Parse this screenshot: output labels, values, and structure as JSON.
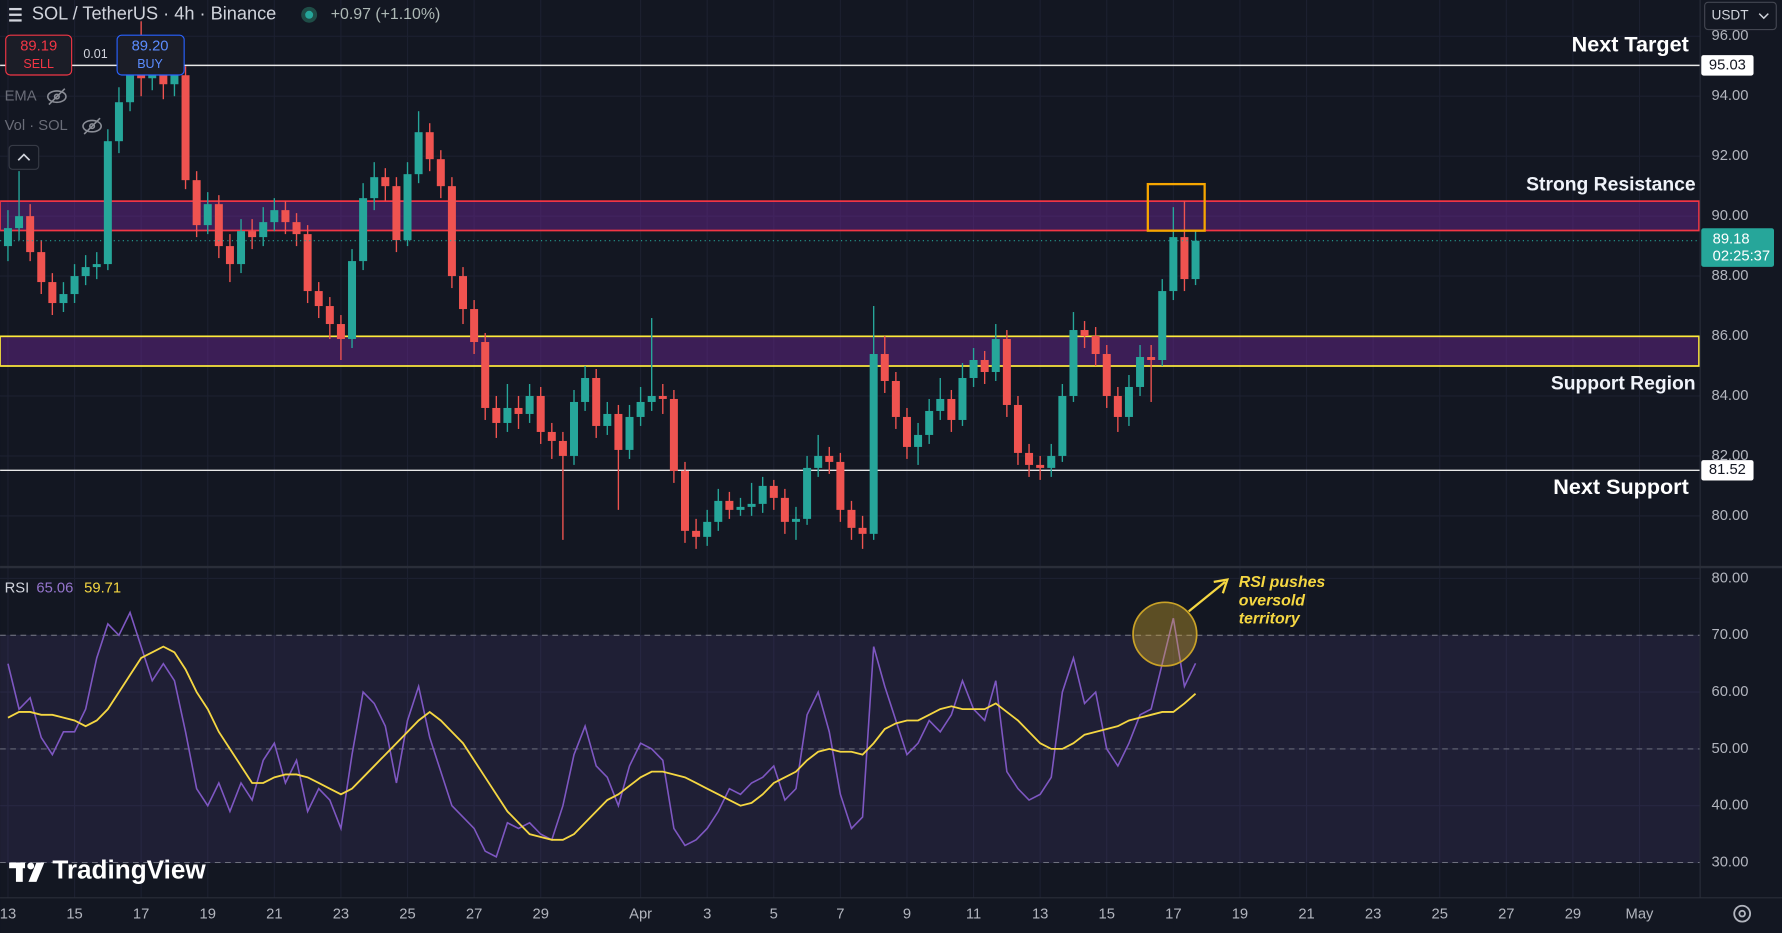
{
  "toolbar": {
    "symbol": "SOL / TetherUS · 4h · Binance",
    "change": "+0.97 (+1.10%)",
    "sell_price": "89.19",
    "sell": "SELL",
    "spread": "0.01",
    "buy_price": "89.20",
    "buy": "BUY",
    "indicators": [
      "EMA",
      "Vol · SOL"
    ],
    "currency": "USDT",
    "brand": "TradingView"
  },
  "chart_data": [
    {
      "type": "candlestick",
      "up_color": "#26a69a",
      "down_color": "#ef5350",
      "grid": true,
      "x": [
        0,
        8,
        16,
        24,
        32,
        40,
        48,
        56,
        64,
        72,
        80,
        88,
        96,
        104,
        112,
        120,
        128,
        136,
        144,
        152,
        160,
        168,
        176,
        184,
        192,
        200,
        208,
        216,
        224,
        232,
        240,
        248,
        256,
        264,
        272,
        280,
        288,
        296,
        304,
        312,
        320,
        328,
        336,
        344,
        352,
        360,
        368,
        376,
        384,
        392,
        400,
        408,
        416,
        424,
        432,
        440,
        448,
        456,
        464,
        472,
        480,
        488,
        496,
        504,
        512,
        520,
        528,
        536,
        544,
        552,
        560,
        568,
        576,
        584,
        592,
        600,
        608,
        616,
        624,
        632,
        640,
        648,
        656,
        664,
        672,
        680,
        688,
        696,
        704,
        712,
        720,
        728,
        736,
        744,
        752,
        760,
        768,
        776,
        784,
        792,
        800,
        808,
        816,
        824,
        832,
        840,
        848,
        856
      ],
      "open": [
        89.0,
        89.6,
        90.0,
        88.8,
        87.8,
        87.1,
        87.4,
        88.0,
        88.3,
        88.4,
        92.5,
        93.8,
        94.8,
        94.6,
        95.0,
        94.4,
        94.7,
        91.2,
        89.7,
        90.4,
        89.0,
        88.4,
        89.5,
        89.3,
        89.8,
        90.2,
        89.8,
        89.4,
        87.5,
        87.0,
        86.4,
        85.9,
        88.5,
        90.6,
        91.3,
        91.0,
        89.2,
        91.4,
        92.8,
        91.9,
        91.0,
        88.0,
        86.9,
        85.8,
        83.6,
        83.1,
        83.6,
        83.4,
        84.0,
        82.8,
        82.5,
        82.0,
        83.8,
        84.6,
        83.0,
        83.4,
        82.2,
        83.3,
        83.8,
        84.0,
        83.9,
        81.5,
        79.5,
        79.3,
        79.8,
        80.5,
        80.2,
        80.3,
        80.4,
        81.0,
        80.6,
        79.8,
        79.9,
        81.6,
        82.0,
        81.8,
        80.2,
        79.6,
        79.4,
        85.4,
        84.5,
        83.3,
        82.3,
        82.7,
        83.5,
        83.9,
        83.2,
        84.6,
        85.2,
        84.8,
        85.9,
        83.7,
        82.1,
        81.7,
        81.6,
        82.0,
        84.0,
        86.2,
        86.0,
        85.4,
        84.0,
        83.3,
        84.3,
        85.3,
        85.2,
        87.5,
        89.3,
        87.9
      ],
      "high": [
        90.2,
        91.5,
        90.4,
        89.2,
        88.1,
        87.8,
        88.4,
        88.7,
        88.8,
        92.9,
        94.3,
        95.3,
        96.5,
        95.6,
        95.4,
        95.1,
        95.0,
        91.5,
        90.8,
        90.7,
        89.4,
        89.9,
        89.9,
        90.3,
        90.6,
        90.5,
        90.1,
        89.7,
        87.8,
        87.3,
        86.7,
        88.9,
        91.1,
        91.8,
        91.6,
        91.3,
        91.8,
        93.5,
        93.1,
        92.2,
        91.3,
        88.3,
        87.2,
        86.1,
        84.0,
        84.4,
        84.0,
        84.4,
        84.3,
        83.1,
        82.8,
        84.2,
        85.0,
        84.9,
        83.8,
        83.7,
        83.7,
        84.3,
        86.6,
        84.4,
        84.2,
        81.8,
        79.9,
        80.2,
        80.9,
        80.8,
        80.6,
        81.1,
        81.3,
        81.2,
        80.9,
        80.3,
        82.0,
        82.7,
        82.3,
        82.1,
        80.5,
        80.0,
        87.0,
        86.0,
        84.8,
        83.6,
        83.1,
        83.9,
        84.6,
        84.2,
        85.1,
        85.6,
        85.5,
        86.4,
        86.2,
        84.0,
        82.4,
        82.0,
        82.4,
        84.4,
        86.8,
        86.5,
        86.3,
        85.7,
        84.3,
        84.7,
        85.7,
        85.7,
        87.9,
        90.3,
        90.5,
        89.5
      ],
      "low": [
        88.5,
        89.2,
        88.5,
        87.4,
        86.7,
        86.8,
        87.1,
        87.7,
        87.9,
        88.2,
        92.1,
        93.5,
        94.0,
        94.2,
        93.9,
        94.0,
        90.9,
        89.3,
        89.4,
        88.6,
        87.8,
        88.1,
        88.9,
        89.0,
        89.5,
        89.4,
        89.0,
        87.1,
        86.6,
        85.9,
        85.2,
        85.6,
        88.2,
        90.2,
        90.5,
        88.8,
        89.0,
        91.1,
        91.5,
        90.6,
        87.6,
        86.4,
        85.4,
        83.2,
        82.6,
        82.8,
        82.9,
        83.1,
        82.4,
        81.9,
        79.2,
        81.7,
        83.5,
        82.6,
        82.7,
        80.2,
        81.9,
        83.0,
        83.5,
        83.4,
        81.1,
        79.1,
        78.9,
        79.0,
        79.5,
        79.9,
        80.0,
        80.0,
        80.1,
        80.2,
        79.4,
        79.2,
        79.7,
        81.3,
        81.4,
        79.8,
        79.2,
        78.9,
        79.2,
        84.1,
        82.9,
        81.9,
        81.7,
        82.4,
        83.2,
        82.8,
        83.0,
        84.3,
        84.4,
        84.5,
        83.3,
        81.7,
        81.3,
        81.2,
        81.3,
        81.8,
        83.8,
        85.6,
        85.0,
        83.6,
        82.8,
        83.0,
        84.0,
        83.8,
        85.0,
        87.2,
        87.5,
        87.7
      ],
      "close": [
        89.6,
        90.0,
        88.8,
        87.8,
        87.1,
        87.4,
        88.0,
        88.3,
        88.4,
        92.5,
        93.8,
        94.8,
        94.6,
        95.0,
        94.4,
        94.7,
        91.2,
        89.7,
        90.4,
        89.0,
        88.4,
        89.5,
        89.3,
        89.8,
        90.2,
        89.8,
        89.4,
        87.5,
        87.0,
        86.4,
        85.9,
        88.5,
        90.6,
        91.3,
        91.0,
        89.2,
        91.4,
        92.8,
        91.9,
        91.0,
        88.0,
        86.9,
        85.8,
        83.6,
        83.1,
        83.6,
        83.4,
        84.0,
        82.8,
        82.5,
        82.0,
        83.8,
        84.6,
        83.0,
        83.4,
        82.2,
        83.3,
        83.8,
        84.0,
        83.9,
        81.5,
        79.5,
        79.3,
        79.8,
        80.5,
        80.2,
        80.3,
        80.4,
        81.0,
        80.6,
        79.8,
        79.9,
        81.6,
        82.0,
        81.8,
        80.2,
        79.6,
        79.4,
        85.4,
        84.5,
        83.3,
        82.3,
        82.7,
        83.5,
        83.9,
        83.2,
        84.6,
        85.2,
        84.8,
        85.9,
        83.7,
        82.1,
        81.7,
        81.6,
        82.0,
        84.0,
        86.2,
        86.0,
        85.4,
        84.0,
        83.3,
        84.3,
        85.3,
        85.2,
        87.5,
        89.3,
        87.9,
        89.18
      ],
      "countdown": "02:25:37",
      "xlim": [
        -5.7,
        1219.7
      ],
      "xticks": [
        {
          "value": 0,
          "label": "13"
        },
        {
          "value": 48,
          "label": "15"
        },
        {
          "value": 96,
          "label": "17"
        },
        {
          "value": 144,
          "label": "19"
        },
        {
          "value": 192,
          "label": "21"
        },
        {
          "value": 240,
          "label": "23"
        },
        {
          "value": 288,
          "label": "25"
        },
        {
          "value": 336,
          "label": "27"
        },
        {
          "value": 384,
          "label": "29"
        },
        {
          "value": 456,
          "label": "Apr"
        },
        {
          "value": 504,
          "label": "3"
        },
        {
          "value": 552,
          "label": "5"
        },
        {
          "value": 600,
          "label": "7"
        },
        {
          "value": 648,
          "label": "9"
        },
        {
          "value": 696,
          "label": "11"
        },
        {
          "value": 744,
          "label": "13"
        },
        {
          "value": 792,
          "label": "15"
        },
        {
          "value": 840,
          "label": "17"
        },
        {
          "value": 888,
          "label": "19"
        },
        {
          "value": 936,
          "label": "21"
        },
        {
          "value": 984,
          "label": "23"
        },
        {
          "value": 1032,
          "label": "25"
        },
        {
          "value": 1080,
          "label": "27"
        },
        {
          "value": 1128,
          "label": "29"
        },
        {
          "value": 1176,
          "label": "May"
        }
      ],
      "ylim": [
        78.33,
        97.21
      ],
      "yticks": [
        {
          "value": 80,
          "label": "80.00"
        },
        {
          "value": 82,
          "label": "82.00"
        },
        {
          "value": 84,
          "label": "84.00"
        },
        {
          "value": 86,
          "label": "86.00"
        },
        {
          "value": 88,
          "label": "88.00"
        },
        {
          "value": 90,
          "label": "90.00"
        },
        {
          "value": 92,
          "label": "92.00"
        },
        {
          "value": 94,
          "label": "94.00"
        },
        {
          "value": 96,
          "label": "96.00"
        }
      ],
      "levels": [
        {
          "label": "Next Target",
          "value": 95.03
        },
        {
          "label": "Next Support",
          "value": 81.52
        }
      ],
      "zones": [
        {
          "label": "Strong Resistance",
          "range": [
            89.52,
            90.5
          ],
          "color": "#f23645"
        },
        {
          "label": "Support Region",
          "range": [
            85.0,
            85.99
          ],
          "color": "#ffeb3b"
        }
      ]
    },
    {
      "type": "line",
      "title": "RSI",
      "grid": true,
      "series": [
        {
          "color": "#7e57c2",
          "values": [
            65,
            57,
            59,
            52,
            49,
            53,
            53,
            57,
            66,
            72,
            70,
            74,
            68,
            62,
            65,
            62,
            53,
            43,
            40,
            44,
            39,
            44,
            41,
            48,
            51,
            44,
            48,
            39,
            43,
            41,
            36,
            49,
            60,
            58,
            54,
            44,
            55,
            61,
            52,
            46,
            40,
            38,
            36,
            32,
            31,
            37,
            36,
            37,
            35,
            34,
            40,
            49,
            54,
            47,
            45,
            40,
            47,
            51,
            50,
            48,
            36,
            33,
            34,
            36,
            39,
            43,
            42,
            44,
            45,
            47,
            41,
            43,
            56,
            60,
            53,
            42,
            36,
            38,
            68,
            61,
            55,
            49,
            51,
            55,
            53,
            56,
            62,
            57,
            55,
            62,
            46,
            43,
            41,
            42,
            45,
            60,
            66,
            58,
            60,
            50,
            47,
            51,
            56,
            57,
            65,
            73,
            61,
            65.06
          ]
        },
        {
          "color": "#f5d742",
          "values": [
            55.5,
            56.5,
            56.5,
            56,
            56,
            55.5,
            55,
            54,
            55,
            57,
            60,
            63,
            66,
            67,
            68,
            67,
            64,
            60,
            57,
            53,
            50,
            47,
            44,
            44,
            45,
            45.5,
            45.5,
            45,
            44,
            43,
            42,
            43,
            45,
            47,
            49,
            51,
            53,
            55,
            56.5,
            55,
            53,
            51,
            48,
            45,
            42,
            39,
            37,
            35,
            34.5,
            34,
            34,
            35,
            37,
            39,
            41,
            42,
            43.5,
            45,
            46,
            46,
            45.5,
            45,
            44,
            43,
            42,
            41,
            40,
            40.5,
            42,
            44,
            45,
            46,
            48,
            49.5,
            50,
            49.5,
            49.5,
            49,
            51,
            53.5,
            54.5,
            55,
            55,
            56,
            57,
            57.5,
            57,
            57,
            57,
            58,
            56.5,
            55,
            53,
            51,
            50,
            50,
            51,
            52.5,
            53,
            53.5,
            54,
            55,
            55.5,
            56,
            56.5,
            56.5,
            58,
            59.71
          ]
        }
      ],
      "bands": [
        30,
        50,
        70
      ],
      "ylim": [
        23.8,
        81.8
      ],
      "yticks": [
        {
          "value": 30,
          "label": "30.00"
        },
        {
          "value": 40,
          "label": "40.00"
        },
        {
          "value": 50,
          "label": "50.00"
        },
        {
          "value": 60,
          "label": "60.00"
        },
        {
          "value": 70,
          "label": "70.00"
        },
        {
          "value": 80,
          "label": "80.00"
        }
      ],
      "annotation": [
        "RSI pushes",
        "oversold",
        "territory"
      ]
    }
  ]
}
